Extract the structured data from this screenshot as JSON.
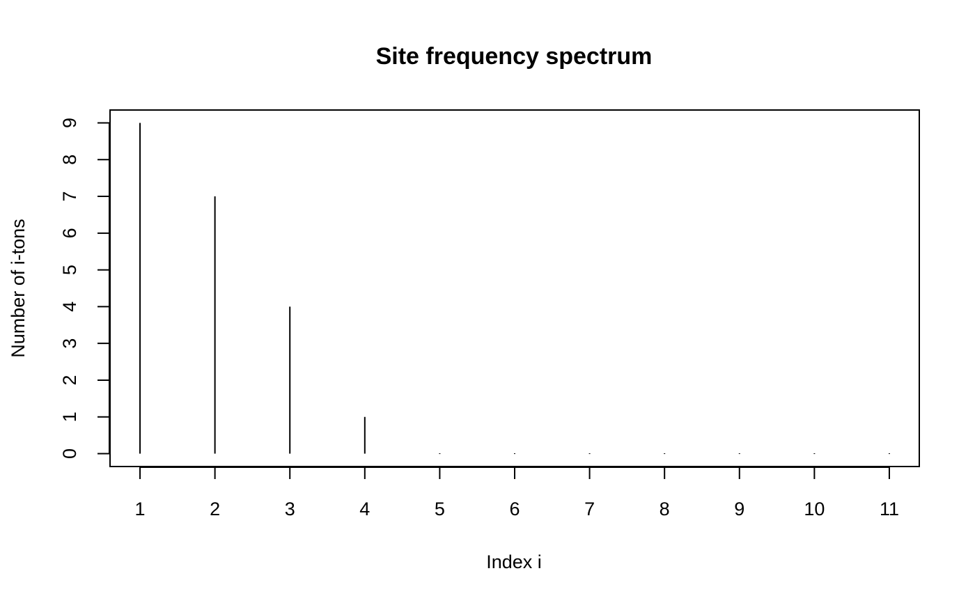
{
  "chart_data": {
    "type": "bar",
    "title": "Site frequency spectrum",
    "xlabel": "Index i",
    "ylabel": "Number of i-tons",
    "x": [
      1,
      2,
      3,
      4,
      5,
      6,
      7,
      8,
      9,
      10,
      11
    ],
    "values": [
      9,
      7,
      4,
      1,
      0,
      0,
      0,
      0,
      0,
      0,
      0
    ],
    "xlim": [
      0.6,
      11.4
    ],
    "ylim": [
      -0.35,
      9.35
    ],
    "xticks": [
      1,
      2,
      3,
      4,
      5,
      6,
      7,
      8,
      9,
      10,
      11
    ],
    "yticks": [
      0,
      1,
      2,
      3,
      4,
      5,
      6,
      7,
      8,
      9
    ],
    "grid": false,
    "color": "#000000"
  }
}
